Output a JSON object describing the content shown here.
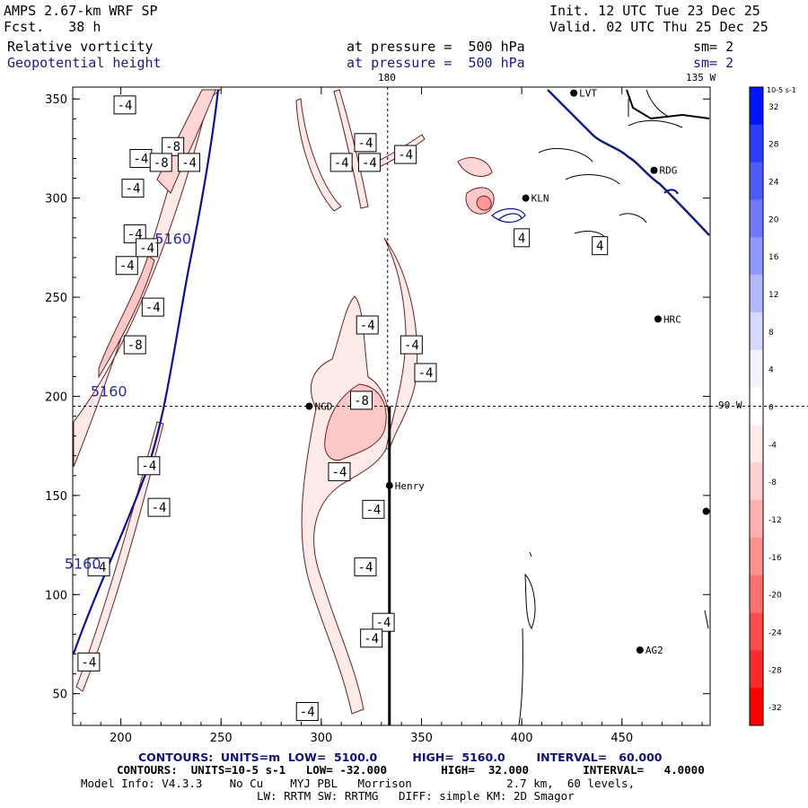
{
  "header": {
    "model": "AMPS 2.67-km WRF SP",
    "fcst": "Fcst.   38 h",
    "init": "Init. 12 UTC Tue 23 Dec 25",
    "valid": "Valid. 02 UTC Thu 25 Dec 25",
    "field1": {
      "name": "Relative vorticity",
      "level": "at pressure =  500 hPa",
      "sm": "sm= 2"
    },
    "field2": {
      "name": "Geopotential height",
      "level": "at pressure =  500 hPa",
      "sm": "sm= 2"
    }
  },
  "map": {
    "axes": {
      "x_ticks": [
        200,
        250,
        300,
        350,
        400,
        450
      ],
      "y_ticks": [
        50,
        100,
        150,
        200,
        250,
        300,
        350
      ],
      "xlim": [
        176,
        494
      ],
      "ylim": [
        34,
        356
      ]
    },
    "meridian_labels": {
      "top": "180",
      "top_right": "135 W",
      "right": "90 W"
    },
    "stations": [
      {
        "name": "LVT",
        "x": 426,
        "y": 353
      },
      {
        "name": "RDG",
        "x": 466,
        "y": 314
      },
      {
        "name": "KLN",
        "x": 402,
        "y": 300
      },
      {
        "name": "HRC",
        "x": 468,
        "y": 239
      },
      {
        "name": "NGD",
        "x": 294,
        "y": 195
      },
      {
        "name": "Henry",
        "x": 334,
        "y": 155
      },
      {
        "name": "AG2",
        "x": 459,
        "y": 72
      },
      {
        "name": "",
        "x": 492,
        "y": 142
      }
    ],
    "height_labels": [
      {
        "text": "5160",
        "x": 226,
        "y": 277
      },
      {
        "text": "5160",
        "x": 194,
        "y": 200
      },
      {
        "text": "5160",
        "x": 181,
        "y": 113
      }
    ],
    "vorticity_labels": [
      {
        "text": "-4",
        "x": 202,
        "y": 347
      },
      {
        "text": "-8",
        "x": 226,
        "y": 326
      },
      {
        "text": "-4",
        "x": 210,
        "y": 320
      },
      {
        "text": "-8",
        "x": 220,
        "y": 318
      },
      {
        "text": "-4",
        "x": 234,
        "y": 318
      },
      {
        "text": "-4",
        "x": 206,
        "y": 305
      },
      {
        "text": "-4",
        "x": 207,
        "y": 282
      },
      {
        "text": "-4",
        "x": 203,
        "y": 266
      },
      {
        "text": "-4",
        "x": 213,
        "y": 275
      },
      {
        "text": "-4",
        "x": 216,
        "y": 245
      },
      {
        "text": "-8",
        "x": 207,
        "y": 226
      },
      {
        "text": "-4",
        "x": 322,
        "y": 328
      },
      {
        "text": "-4",
        "x": 310,
        "y": 318
      },
      {
        "text": "-4",
        "x": 324,
        "y": 318
      },
      {
        "text": "-4",
        "x": 342,
        "y": 322
      },
      {
        "text": "-4",
        "x": 323,
        "y": 236
      },
      {
        "text": "-4",
        "x": 345,
        "y": 226
      },
      {
        "text": "-4",
        "x": 352,
        "y": 212
      },
      {
        "text": "-8",
        "x": 320,
        "y": 198
      },
      {
        "text": "-4",
        "x": 309,
        "y": 162
      },
      {
        "text": "-4",
        "x": 326,
        "y": 143
      },
      {
        "text": "-4",
        "x": 214,
        "y": 165
      },
      {
        "text": "-4",
        "x": 219,
        "y": 144
      },
      {
        "text": "-4",
        "x": 189,
        "y": 114
      },
      {
        "text": "-4",
        "x": 322,
        "y": 114
      },
      {
        "text": "-4",
        "x": 331,
        "y": 86
      },
      {
        "text": "-4",
        "x": 325,
        "y": 78
      },
      {
        "text": "-4",
        "x": 184,
        "y": 66
      },
      {
        "text": "-4",
        "x": 293,
        "y": 41
      },
      {
        "text": "4",
        "x": 400,
        "y": 280
      },
      {
        "text": "4",
        "x": 439,
        "y": 276
      }
    ],
    "cross_section": {
      "x": 334,
      "y_start": 34,
      "y_end": 195
    }
  },
  "colorbar": {
    "unit_label": "10-5 s-1",
    "ticks": [
      "32",
      "28",
      "24",
      "20",
      "16",
      "12",
      "8",
      "4",
      "0",
      "-4",
      "-8",
      "-12",
      "-16",
      "-20",
      "-24",
      "-28",
      "-32"
    ],
    "colors": [
      "#0015ff",
      "#2b3dff",
      "#4d5bff",
      "#6f7aff",
      "#9199ff",
      "#b3b8ff",
      "#d6d8ff",
      "#f3f3ff",
      "#ffffff",
      "#ffeaea",
      "#ffd0d0",
      "#ffb0b0",
      "#ff9090",
      "#ff7070",
      "#ff4d4d",
      "#ff2b2b",
      "#ff0000"
    ]
  },
  "footer": {
    "line1": "CONTOURS:  UNITS=m  LOW=  5100.0         HIGH=  5160.0        INTERVAL=   60.000",
    "line2": "CONTOURS:  UNITS=10-5 s-1   LOW= -32.000        HIGH=  32.000        INTERVAL=   4.0000",
    "line3": "Model Info: V4.3.3    No Cu    MYJ PBL   Morrison              2.7 km,  60 levels,",
    "line4": "LW: RRTM SW: RRTMG   DIFF: simple KM: 2D Smagor"
  }
}
